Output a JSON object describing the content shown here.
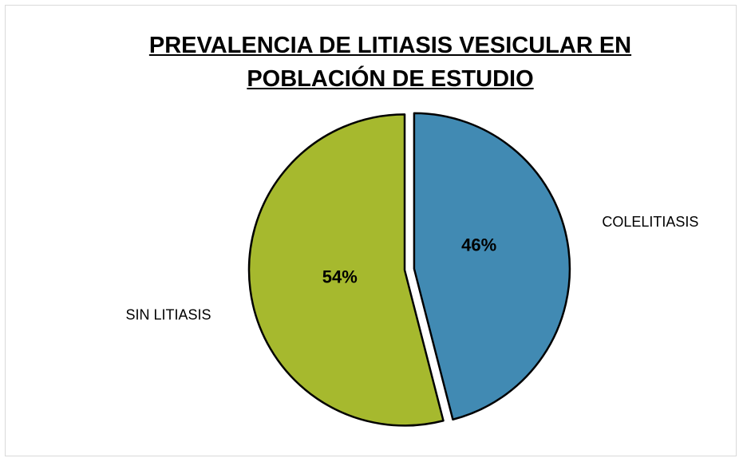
{
  "chart_data": {
    "type": "pie",
    "title": "PREVALENCIA DE LITIASIS VESICULAR EN POBLACIÓN DE ESTUDIO",
    "categories": [
      "COLELITIASIS",
      "SIN LITIASIS"
    ],
    "values": [
      46,
      54
    ],
    "value_labels": [
      "46%",
      "54%"
    ],
    "colors": [
      "#418ab3",
      "#a6b92e"
    ],
    "exploded": true
  }
}
